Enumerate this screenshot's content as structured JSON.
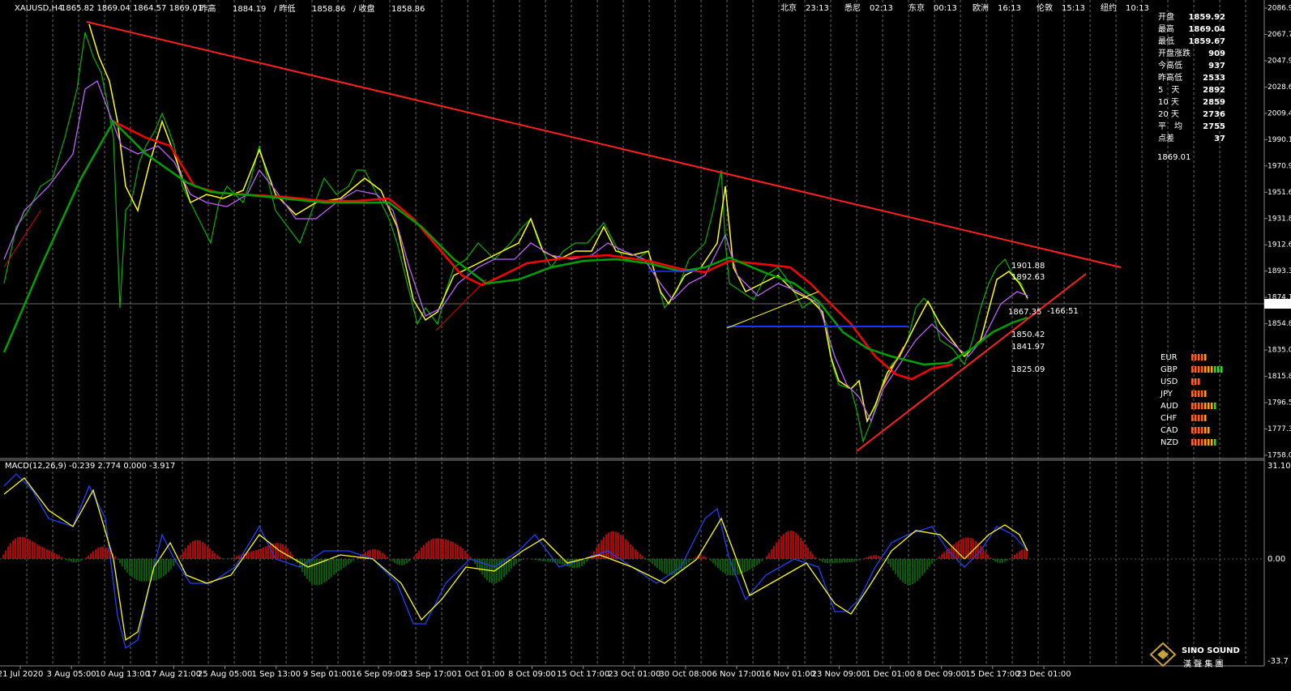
{
  "header": {
    "symbol": "XAUUSD,H4",
    "ohlc": "1865.82 1869.04 1864.57 1869.01",
    "fields": [
      {
        "label": "/ 昨高",
        "value": "1884.19"
      },
      {
        "label": "/ 昨低",
        "value": "1858.86"
      },
      {
        "label": "/ 收盘",
        "value": "1858.86"
      }
    ]
  },
  "clocks": [
    {
      "city": "北京",
      "time": "23:13"
    },
    {
      "city": "悉尼",
      "time": "02:13"
    },
    {
      "city": "东京",
      "time": "00:13"
    },
    {
      "city": "欧洲",
      "time": "16:13"
    },
    {
      "city": "伦敦",
      "time": "15:13"
    },
    {
      "city": "纽约",
      "time": "10:13"
    }
  ],
  "info_panel": {
    "rows": [
      {
        "label": "开盘",
        "value": "1859.92"
      },
      {
        "label": "最高",
        "value": "1869.04"
      },
      {
        "label": "最低",
        "value": "1859.67"
      },
      {
        "label": "开盘涨跌",
        "value": "909"
      },
      {
        "label": "今高低",
        "value": "937"
      },
      {
        "label": "昨高低",
        "value": "2533"
      },
      {
        "label": "5　天",
        "value": "2892"
      },
      {
        "label": "10 天",
        "value": "2859"
      },
      {
        "label": "20 天",
        "value": "2736"
      },
      {
        "label": "平　均",
        "value": "2755"
      },
      {
        "label": "点差",
        "value": "37"
      }
    ],
    "last_price": "1869.01"
  },
  "price_axis": [
    "2086.95",
    "2067.70",
    "2047.95",
    "2028.65",
    "2009.40",
    "1990.15",
    "1970.90",
    "1951.65",
    "1931.85",
    "1912.60",
    "1893.35",
    "1874.10",
    "1854.85",
    "1835.05",
    "1815.80",
    "1796.55",
    "1777.30",
    "1758.05"
  ],
  "current_price_tag": "1869.01",
  "date_axis": [
    "21 Jul 2020",
    "3 Aug 05:00",
    "10 Aug 13:00",
    "17 Aug 21:00",
    "25 Aug 05:00",
    "1 Sep 13:00",
    "9 Sep 01:00",
    "16 Sep 09:00",
    "23 Sep 17:00",
    "1 Oct 01:00",
    "8 Oct 09:00",
    "15 Oct 17:00",
    "23 Oct 01:00",
    "30 Oct 08:00",
    "6 Nov 17:00",
    "16 Nov 01:00",
    "23 Nov 09:00",
    "1 Dec 01:00",
    "8 Dec 09:00",
    "15 Dec 17:00",
    "23 Dec 01:00"
  ],
  "macd": {
    "label": "MACD(12,26,9) -0.239 2.774 0.000 -3.917",
    "axis": [
      "31.101",
      "0.00",
      "-33.7"
    ]
  },
  "annotations": [
    {
      "text": "1901.88"
    },
    {
      "text": "1892.63"
    },
    {
      "text": "1867.35"
    },
    {
      "text": "-166:51"
    },
    {
      "text": "1850.42"
    },
    {
      "text": "1841.97"
    },
    {
      "text": "1825.09"
    }
  ],
  "currencies": [
    "EUR",
    "GBP",
    "USD",
    "JPY",
    "AUD",
    "CHF",
    "CAD",
    "NZD"
  ],
  "logo": {
    "name": "SINO SOUND",
    "chinese": "漢 聲 集 團"
  }
}
